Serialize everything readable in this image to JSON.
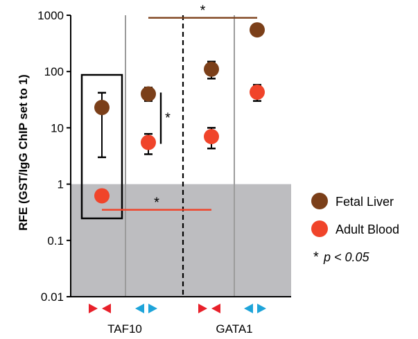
{
  "chart_data": {
    "type": "scatter",
    "ylabel": "RFE (GST/IgG ChIP set to 1)",
    "yscale": "log",
    "ylim": [
      0.01,
      1000
    ],
    "yticks": [
      "1000",
      "100",
      "10",
      "1",
      "0.1",
      "0.01"
    ],
    "background_band": {
      "from": 0.01,
      "to": 1,
      "color": "#bdbdc0"
    },
    "groups": [
      "TAF10",
      "GATA1"
    ],
    "conditions": [
      {
        "group": "TAF10",
        "orientation": "inward",
        "color": "#e8202a"
      },
      {
        "group": "TAF10",
        "orientation": "outward",
        "color": "#1ea4d9"
      },
      {
        "group": "GATA1",
        "orientation": "inward",
        "color": "#e8202a"
      },
      {
        "group": "GATA1",
        "orientation": "outward",
        "color": "#1ea4d9"
      }
    ],
    "series": [
      {
        "name": "Fetal Liver",
        "color": "#7b3f19",
        "values": [
          23,
          40,
          110,
          550
        ],
        "err_low": [
          3,
          30,
          75,
          0
        ],
        "err_high": [
          42,
          52,
          150,
          0
        ]
      },
      {
        "name": "Adult Blood",
        "color": "#f0442a",
        "values": [
          0.62,
          5.5,
          7,
          43
        ],
        "err_low": [
          0,
          3.4,
          4.3,
          30
        ],
        "err_high": [
          0,
          7.8,
          10,
          58
        ]
      }
    ],
    "significance_label": "*",
    "significance_note": "p < 0.05",
    "significance": [
      {
        "between": [
          1,
          3
        ],
        "y": 900,
        "color": "#7b3f19",
        "label": "*"
      },
      {
        "between": [
          0,
          2
        ],
        "y": 0.35,
        "color": "#f0442a",
        "label": "*"
      },
      {
        "vertical_at": 1,
        "from": 5.5,
        "to": 40,
        "color": "#000000",
        "label": "*"
      }
    ]
  },
  "legend": {
    "items": [
      {
        "label": "Fetal Liver",
        "color": "#7b3f19"
      },
      {
        "label": "Adult Blood",
        "color": "#f0442a"
      }
    ],
    "note_star": "*",
    "note_text": "p < 0.05"
  }
}
